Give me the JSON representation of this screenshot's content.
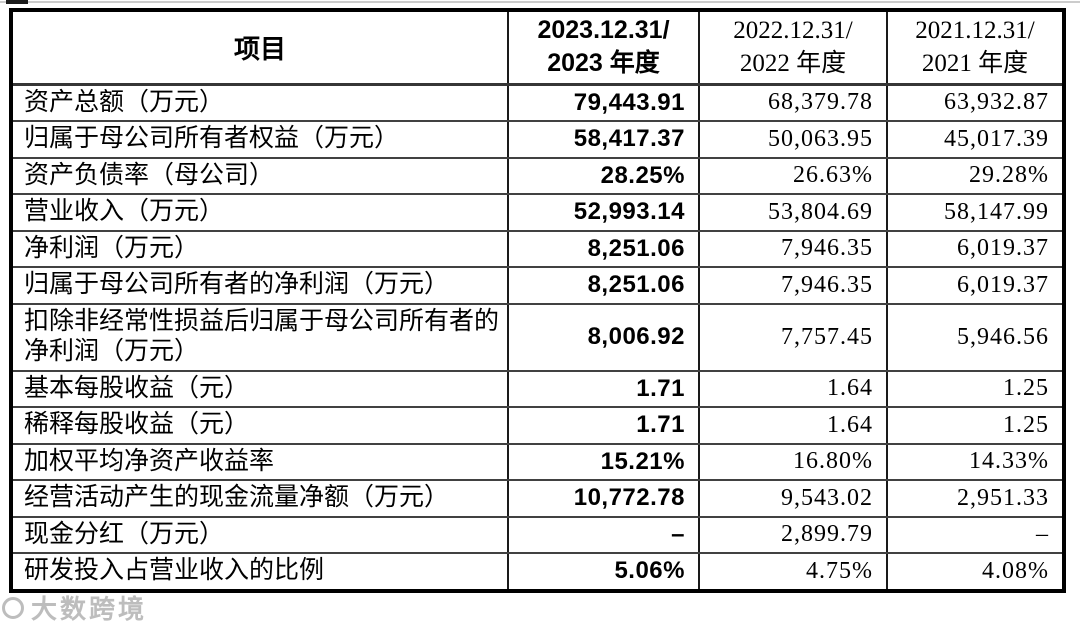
{
  "table": {
    "columns": {
      "item_label": "项目",
      "periods": [
        {
          "line1": "2023.12.31/",
          "line2": "2023 年度"
        },
        {
          "line1": "2022.12.31/",
          "line2": "2022 年度"
        },
        {
          "line1": "2021.12.31/",
          "line2": "2021 年度"
        }
      ]
    },
    "rows": [
      {
        "label": "资产总额（万元）",
        "v2023": "79,443.91",
        "v2022": "68,379.78",
        "v2021": "63,932.87"
      },
      {
        "label": "归属于母公司所有者权益（万元）",
        "v2023": "58,417.37",
        "v2022": "50,063.95",
        "v2021": "45,017.39"
      },
      {
        "label": "资产负债率（母公司）",
        "v2023": "28.25%",
        "v2022": "26.63%",
        "v2021": "29.28%"
      },
      {
        "label": "营业收入（万元）",
        "v2023": "52,993.14",
        "v2022": "53,804.69",
        "v2021": "58,147.99"
      },
      {
        "label": "净利润（万元）",
        "v2023": "8,251.06",
        "v2022": "7,946.35",
        "v2021": "6,019.37"
      },
      {
        "label": "归属于母公司所有者的净利润（万元）",
        "v2023": "8,251.06",
        "v2022": "7,946.35",
        "v2021": "6,019.37"
      },
      {
        "label": "扣除非经常性损益后归属于母公司所有者的净利润（万元）",
        "v2023": "8,006.92",
        "v2022": "7,757.45",
        "v2021": "5,946.56"
      },
      {
        "label": "基本每股收益（元）",
        "v2023": "1.71",
        "v2022": "1.64",
        "v2021": "1.25"
      },
      {
        "label": "稀释每股收益（元）",
        "v2023": "1.71",
        "v2022": "1.64",
        "v2021": "1.25"
      },
      {
        "label": "加权平均净资产收益率",
        "v2023": "15.21%",
        "v2022": "16.80%",
        "v2021": "14.33%"
      },
      {
        "label": "经营活动产生的现金流量净额（万元）",
        "v2023": "10,772.78",
        "v2022": "9,543.02",
        "v2021": "2,951.33"
      },
      {
        "label": "现金分红（万元）",
        "v2023": "–",
        "v2022": "2,899.79",
        "v2021": "–"
      },
      {
        "label": "研发投入占营业收入的比例",
        "v2023": "5.06%",
        "v2022": "4.75%",
        "v2021": "4.08%"
      }
    ]
  },
  "watermark": {
    "text": "大数跨境",
    "icon": "circle-logo"
  }
}
